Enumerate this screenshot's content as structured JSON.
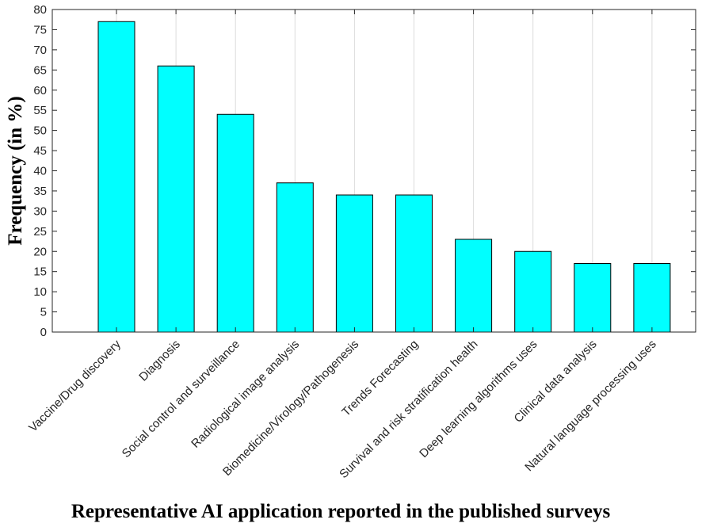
{
  "chart_data": {
    "type": "bar",
    "categories": [
      "Vaccine/Drug discovery",
      "Diagnosis",
      "Social control and surveillance",
      "Radiological image analysis",
      "Biomedicine/Virology/Pathogenesis",
      "Trends Forecasting",
      "Survival and risk stratification health",
      "Deep learning algorithms uses",
      "Clinical data analysis",
      "Natural language processing uses"
    ],
    "values": [
      77,
      66,
      54,
      37,
      34,
      34,
      23,
      20,
      17,
      17
    ],
    "title": "",
    "xlabel": "Representative AI application reported in the published surveys",
    "ylabel": "Frequency (in %)",
    "ylim": [
      0,
      80
    ],
    "yticks": [
      0,
      5,
      10,
      15,
      20,
      25,
      30,
      35,
      40,
      45,
      50,
      55,
      60,
      65,
      70,
      75,
      80
    ],
    "grid": "vertical",
    "bar_color": "#00ffff",
    "bar_edge_color": "#000000"
  }
}
